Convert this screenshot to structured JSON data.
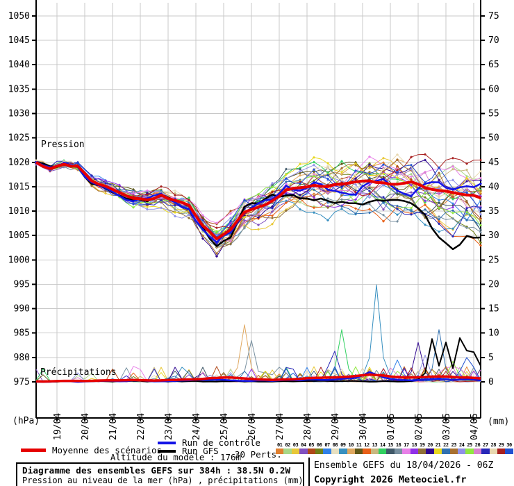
{
  "axes": {
    "pressure_label": "Pression",
    "precip_label": "Précipitations",
    "left_unit": "(hPa)",
    "right_unit": "(mm)",
    "left_ticks": [
      1050,
      1045,
      1040,
      1035,
      1030,
      1025,
      1020,
      1015,
      1010,
      1005,
      1000,
      995,
      990,
      985,
      980,
      975
    ],
    "right_ticks": [
      75,
      70,
      65,
      60,
      55,
      50,
      45,
      40,
      35,
      30,
      25,
      20,
      15,
      10,
      5,
      0
    ],
    "x_tick_labels": [
      "19/04",
      "20/04",
      "21/04",
      "22/04",
      "23/04",
      "24/04",
      "25/04",
      "26/04",
      "27/04",
      "28/04",
      "29/04",
      "30/04",
      "01/05",
      "02/05",
      "03/05",
      "04/05"
    ]
  },
  "chart_data": {
    "type": "line",
    "title": "Diagramme des ensembles GEFS sur 384h : 38.5N 0.2W",
    "subtitle": "Pression au niveau de la mer (hPa) , précipitations (mm)",
    "hours_span": 384,
    "step_hours": 12,
    "pressure_ylim": [
      967,
      1052
    ],
    "precip_ylim": [
      0,
      75
    ],
    "grid_color": "#c8c8c8",
    "series": [
      {
        "name": "Moyenne des scénarios",
        "role": "mean",
        "color": "#e60000",
        "width": 4,
        "pressure": [
          1020,
          1018.7,
          1019.6,
          1019.2,
          1016.2,
          1015.1,
          1013.8,
          1012.6,
          1012.3,
          1013.3,
          1012.2,
          1011.2,
          1007.0,
          1004.3,
          1006.2,
          1009.8,
          1010.8,
          1012.1,
          1014.3,
          1014.8,
          1015.3,
          1015.0,
          1015.5,
          1016.0,
          1016.2,
          1015.8,
          1015.5,
          1016.0,
          1014.8,
          1014.2,
          1013.8,
          1013.3,
          1012.7
        ],
        "precip": [
          0.1,
          0.1,
          0.2,
          0.2,
          0.2,
          0.3,
          0.3,
          0.4,
          0.3,
          0.3,
          0.4,
          0.5,
          0.6,
          0.8,
          0.9,
          0.7,
          0.5,
          0.4,
          0.5,
          0.6,
          0.8,
          0.9,
          1.0,
          1.2,
          1.5,
          1.3,
          1.0,
          0.9,
          1.0,
          1.1,
          1.0,
          0.9,
          0.7
        ]
      },
      {
        "name": "Run de contrôle",
        "role": "control",
        "color": "#1414e6",
        "width": 2.5,
        "pressure": [
          1020,
          1019.0,
          1019.9,
          1019.0,
          1015.9,
          1014.8,
          1013.1,
          1012.0,
          1012.6,
          1013.6,
          1011.8,
          1010.4,
          1006.2,
          1003.6,
          1005.6,
          1009.6,
          1011.6,
          1012.4,
          1015.2,
          1014.2,
          1015.9,
          1014.4,
          1013.8,
          1013.4,
          1015.9,
          1016.6,
          1014.2,
          1013.1,
          1015.6,
          1015.9,
          1014.4,
          1015.1,
          1015.6
        ],
        "precip": [
          0,
          0,
          0.1,
          0,
          0.1,
          0.2,
          0.1,
          0.3,
          0.2,
          0.1,
          0.2,
          0.3,
          0.4,
          0.5,
          0.3,
          0.2,
          0.3,
          0.2,
          0.4,
          0.3,
          0.5,
          0.4,
          0.6,
          0.8,
          2.0,
          0.9,
          0.4,
          0.3,
          0.5,
          0.6,
          0.4,
          0.5,
          0.3
        ]
      },
      {
        "name": "Run GFS",
        "role": "gfs",
        "color": "#000000",
        "width": 2.5,
        "pressure": [
          1020,
          1019.2,
          1019.7,
          1019.1,
          1015.6,
          1014.7,
          1013.2,
          1012.3,
          1012.0,
          1013.1,
          1012.1,
          1011.0,
          1006.6,
          1002.8,
          1004.6,
          1010.9,
          1011.6,
          1013.4,
          1013.2,
          1012.6,
          1012.2,
          1012.1,
          1011.9,
          1011.6,
          1011.9,
          1012.1,
          1012.3,
          1011.6,
          1009.2,
          1004.6,
          1002.2,
          1004.9,
          1004.6
        ],
        "precip_events": [
          [
            330,
            0.5
          ],
          [
            336,
            1.8
          ],
          [
            342,
            8.8
          ],
          [
            348,
            3.3
          ],
          [
            354,
            8.1
          ],
          [
            360,
            2.8
          ],
          [
            366,
            9.0
          ],
          [
            372,
            6.4
          ],
          [
            378,
            6.1
          ],
          [
            384,
            3.3
          ]
        ]
      }
    ],
    "members": {
      "count": 30,
      "labels": [
        "01",
        "02",
        "03",
        "04",
        "05",
        "06",
        "07",
        "08",
        "09",
        "10",
        "11",
        "12",
        "13",
        "14",
        "15",
        "16",
        "17",
        "18",
        "19",
        "20",
        "21",
        "22",
        "23",
        "24",
        "25",
        "26",
        "27",
        "28",
        "29",
        "30"
      ],
      "colors": [
        "#e08030",
        "#a8d888",
        "#e8c838",
        "#8050c0",
        "#b04818",
        "#708018",
        "#3080e8",
        "#e8e0c0",
        "#3890c0",
        "#e0a860",
        "#605818",
        "#e86018",
        "#c8b880",
        "#30d060",
        "#405868",
        "#7890a0",
        "#e880e8",
        "#9030e8",
        "#907038",
        "#300890",
        "#e8d820",
        "#3070b0",
        "#a87030",
        "#9090e8",
        "#90e840",
        "#d880d0",
        "#2828b8",
        "#e8d8b0",
        "#a82020",
        "#2050d0"
      ],
      "spread_start_hpa": 0.5,
      "spread_end_hpa": 8.5,
      "precip_spikes": [
        {
          "member": 10,
          "t": 177,
          "peak": 11.7
        },
        {
          "member": 16,
          "t": 186,
          "peak": 8.5
        },
        {
          "member": 9,
          "t": 126,
          "peak": 3.0
        },
        {
          "member": 15,
          "t": 120,
          "peak": 2.2
        },
        {
          "member": 27,
          "t": 256,
          "peak": 6.3
        },
        {
          "member": 14,
          "t": 263,
          "peak": 10.7
        },
        {
          "member": 9,
          "t": 293,
          "peak": 19.9
        },
        {
          "member": 7,
          "t": 310,
          "peak": 4.5
        },
        {
          "member": 24,
          "t": 336,
          "peak": 5.5
        },
        {
          "member": 20,
          "t": 329,
          "peak": 8.1
        },
        {
          "member": 22,
          "t": 347,
          "peak": 10.7
        },
        {
          "member": 1,
          "t": 356,
          "peak": 3.2
        },
        {
          "member": 25,
          "t": 362,
          "peak": 4.2
        },
        {
          "member": 17,
          "t": 316,
          "peak": 2.5
        },
        {
          "member": 30,
          "t": 370,
          "peak": 5.0
        },
        {
          "member": 13,
          "t": 252,
          "peak": 2.5
        },
        {
          "member": 21,
          "t": 200,
          "peak": 2.2
        },
        {
          "member": 4,
          "t": 222,
          "peak": 1.8
        }
      ]
    }
  },
  "legend": {
    "mean_label": "Moyenne des scénarios",
    "control_label": "Run de contrôle",
    "gfs_label": "Run GFS",
    "perts_label": "30 Perts."
  },
  "footer": {
    "altitude": "Altitude du modele : 176m",
    "box_title": "Diagramme des ensembles GEFS sur 384h : 38.5N 0.2W",
    "box_subtitle": "Pression au niveau de la mer (hPa) , précipitations (mm)",
    "run_info": "Ensemble GEFS du 18/04/2026 - 06Z",
    "copyright": "Copyright 2026 Meteociel.fr"
  }
}
